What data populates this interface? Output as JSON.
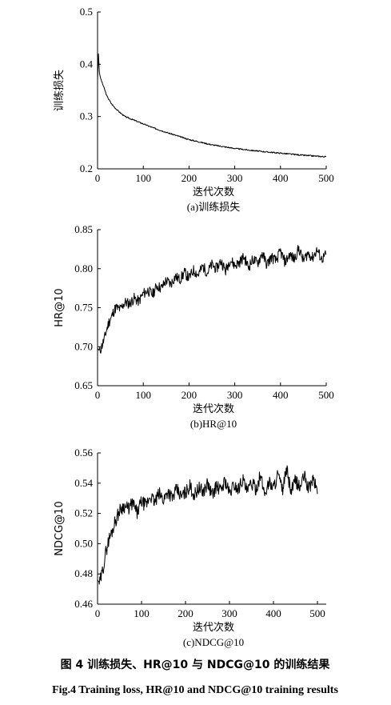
{
  "caption": {
    "cn": "图 4    训练损失、HR@10 与 NDCG@10 的训练结果",
    "en": "Fig.4    Training loss, HR@10 and NDCG@10 training results"
  },
  "chart_data": [
    {
      "type": "line",
      "subtitle": "(a)训练损失",
      "xlabel": "迭代次数",
      "ylabel": "训练损失",
      "xlim": [
        0,
        500
      ],
      "ylim": [
        0.2,
        0.5
      ],
      "xticks": [
        0,
        100,
        200,
        300,
        400,
        500
      ],
      "yticks": [
        0.2,
        0.3,
        0.4,
        0.5
      ],
      "ytick_labels": [
        "0.2",
        "0.3",
        "0.4",
        "0.5"
      ],
      "grid": false,
      "series": [
        {
          "x": [
            0,
            2,
            4,
            6,
            8,
            10,
            15,
            20,
            30,
            40,
            50,
            60,
            80,
            100,
            120,
            150,
            200,
            250,
            300,
            350,
            400,
            450,
            500
          ],
          "values": [
            0.37,
            0.42,
            0.385,
            0.375,
            0.37,
            0.365,
            0.353,
            0.34,
            0.325,
            0.315,
            0.307,
            0.3,
            0.293,
            0.286,
            0.279,
            0.27,
            0.256,
            0.246,
            0.239,
            0.234,
            0.23,
            0.226,
            0.223
          ]
        }
      ]
    },
    {
      "type": "line",
      "subtitle": "(b)HR@10",
      "xlabel": "迭代次数",
      "ylabel": "HR@10",
      "xlim": [
        0,
        500
      ],
      "ylim": [
        0.65,
        0.85
      ],
      "xticks": [
        0,
        100,
        200,
        300,
        400,
        500
      ],
      "yticks": [
        0.65,
        0.7,
        0.75,
        0.8,
        0.85
      ],
      "ytick_labels": [
        "0.65",
        "0.70",
        "0.75",
        "0.80",
        "0.85"
      ],
      "grid": false,
      "series": [
        {
          "x": [
            0,
            5,
            10,
            15,
            20,
            25,
            30,
            35,
            40,
            50,
            60,
            70,
            80,
            90,
            100,
            110,
            120,
            130,
            140,
            150,
            160,
            170,
            180,
            190,
            200,
            210,
            220,
            230,
            240,
            250,
            260,
            270,
            280,
            290,
            300,
            310,
            320,
            330,
            340,
            350,
            360,
            370,
            380,
            390,
            400,
            410,
            420,
            430,
            440,
            450,
            460,
            470,
            480,
            490,
            500
          ],
          "values": [
            0.698,
            0.694,
            0.702,
            0.71,
            0.722,
            0.732,
            0.737,
            0.745,
            0.75,
            0.748,
            0.757,
            0.755,
            0.762,
            0.758,
            0.768,
            0.772,
            0.767,
            0.778,
            0.775,
            0.785,
            0.78,
            0.79,
            0.786,
            0.795,
            0.788,
            0.798,
            0.792,
            0.803,
            0.795,
            0.805,
            0.8,
            0.81,
            0.797,
            0.812,
            0.804,
            0.808,
            0.815,
            0.802,
            0.812,
            0.807,
            0.82,
            0.805,
            0.815,
            0.81,
            0.822,
            0.808,
            0.818,
            0.812,
            0.826,
            0.81,
            0.82,
            0.814,
            0.824,
            0.812,
            0.818
          ]
        }
      ]
    },
    {
      "type": "line",
      "subtitle": "(c)NDCG@10",
      "xlabel": "迭代次数",
      "ylabel": "NDCG@10",
      "xlim": [
        0,
        520
      ],
      "ylim": [
        0.46,
        0.56
      ],
      "xticks": [
        0,
        100,
        200,
        300,
        400,
        500
      ],
      "yticks": [
        0.46,
        0.48,
        0.5,
        0.52,
        0.54,
        0.56
      ],
      "ytick_labels": [
        "0.46",
        "0.48",
        "0.50",
        "0.52",
        "0.54",
        "0.56"
      ],
      "grid": false,
      "series": [
        {
          "x": [
            0,
            5,
            10,
            15,
            20,
            25,
            30,
            35,
            40,
            45,
            50,
            60,
            70,
            80,
            90,
            100,
            110,
            120,
            130,
            140,
            150,
            160,
            170,
            180,
            190,
            200,
            210,
            220,
            230,
            240,
            250,
            260,
            270,
            280,
            290,
            300,
            310,
            320,
            330,
            340,
            350,
            360,
            370,
            380,
            390,
            400,
            410,
            420,
            430,
            440,
            450,
            460,
            470,
            480,
            490,
            500
          ],
          "values": [
            0.476,
            0.474,
            0.48,
            0.488,
            0.496,
            0.502,
            0.506,
            0.51,
            0.515,
            0.518,
            0.522,
            0.525,
            0.523,
            0.527,
            0.52,
            0.528,
            0.525,
            0.532,
            0.527,
            0.533,
            0.529,
            0.535,
            0.53,
            0.536,
            0.531,
            0.534,
            0.538,
            0.532,
            0.537,
            0.534,
            0.54,
            0.532,
            0.538,
            0.535,
            0.542,
            0.533,
            0.539,
            0.536,
            0.543,
            0.534,
            0.54,
            0.536,
            0.545,
            0.533,
            0.541,
            0.537,
            0.546,
            0.535,
            0.549,
            0.534,
            0.542,
            0.537,
            0.545,
            0.536,
            0.543,
            0.535
          ]
        }
      ]
    }
  ]
}
